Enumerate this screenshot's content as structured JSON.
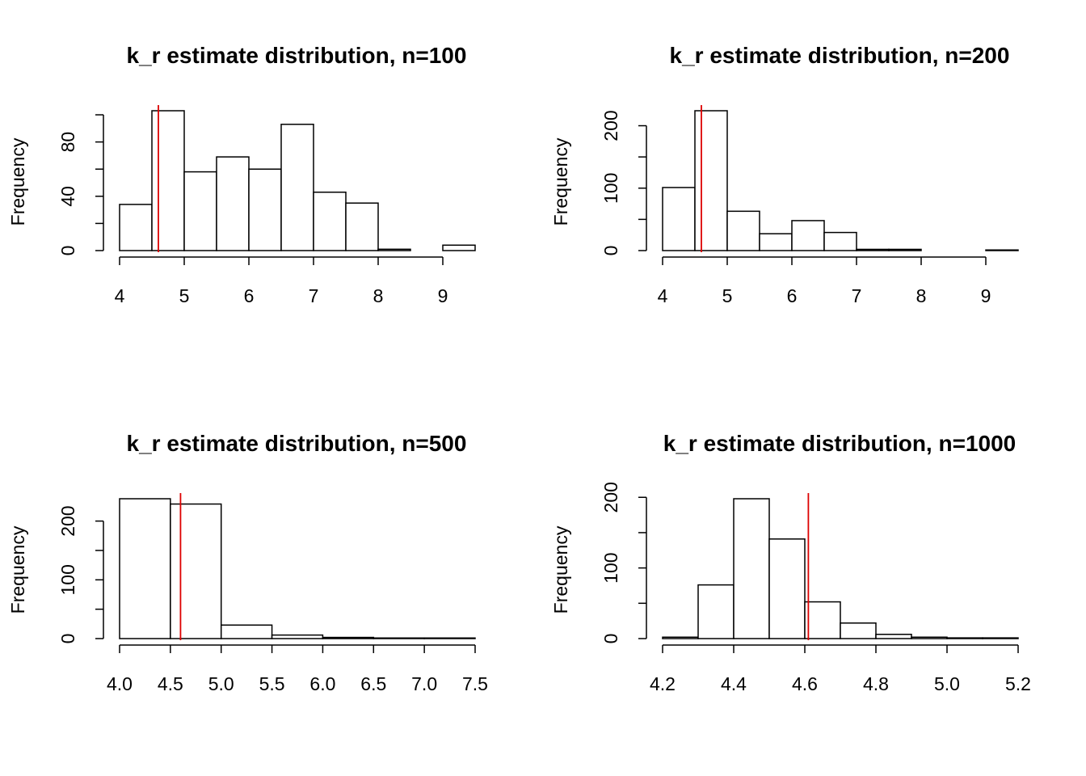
{
  "chart_data": [
    {
      "type": "bar",
      "title": "k_r estimate distribution, n=100",
      "xlabel": "",
      "ylabel": "Frequency",
      "bins": [
        [
          4.0,
          4.5
        ],
        [
          4.5,
          5.0
        ],
        [
          5.0,
          5.5
        ],
        [
          5.5,
          6.0
        ],
        [
          6.0,
          6.5
        ],
        [
          6.5,
          7.0
        ],
        [
          7.0,
          7.5
        ],
        [
          7.5,
          8.0
        ],
        [
          8.0,
          8.5
        ],
        [
          8.5,
          9.0
        ],
        [
          9.0,
          9.5
        ]
      ],
      "values": [
        34,
        103,
        58,
        69,
        60,
        93,
        43,
        35,
        1,
        0,
        4
      ],
      "xlim": [
        4,
        9.5
      ],
      "ylim": [
        0,
        103
      ],
      "xticks": [
        4,
        5,
        6,
        7,
        8,
        9
      ],
      "xtick_labels": [
        "4",
        "5",
        "6",
        "7",
        "8",
        "9"
      ],
      "yticks": [
        0,
        20,
        40,
        60,
        80,
        100
      ],
      "ytick_labels": [
        "0",
        "",
        "40",
        "",
        "80",
        ""
      ],
      "reference_line": {
        "x": 4.6,
        "color": "#dd0000"
      },
      "bar_fill": "#ffffff",
      "bar_stroke": "#000000",
      "grid": false
    },
    {
      "type": "bar",
      "title": "k_r estimate distribution, n=200",
      "xlabel": "",
      "ylabel": "Frequency",
      "bins": [
        [
          4.0,
          4.5
        ],
        [
          4.5,
          5.0
        ],
        [
          5.0,
          5.5
        ],
        [
          5.5,
          6.0
        ],
        [
          6.0,
          6.5
        ],
        [
          6.5,
          7.0
        ],
        [
          7.0,
          7.5
        ],
        [
          7.5,
          8.0
        ],
        [
          8.0,
          8.5
        ],
        [
          8.5,
          9.0
        ],
        [
          9.0,
          9.5
        ]
      ],
      "values": [
        101,
        224,
        63,
        27,
        48,
        29,
        2,
        2,
        0,
        0,
        1
      ],
      "xlim": [
        4,
        9.5
      ],
      "ylim": [
        0,
        224
      ],
      "xticks": [
        4,
        5,
        6,
        7,
        8,
        9
      ],
      "xtick_labels": [
        "4",
        "5",
        "6",
        "7",
        "8",
        "9"
      ],
      "yticks": [
        0,
        50,
        100,
        150,
        200
      ],
      "ytick_labels": [
        "0",
        "",
        "100",
        "",
        "200"
      ],
      "reference_line": {
        "x": 4.6,
        "color": "#dd0000"
      },
      "bar_fill": "#ffffff",
      "bar_stroke": "#000000",
      "grid": false
    },
    {
      "type": "bar",
      "title": "k_r estimate distribution, n=500",
      "xlabel": "",
      "ylabel": "Frequency",
      "bins": [
        [
          4.0,
          4.5
        ],
        [
          4.5,
          5.0
        ],
        [
          5.0,
          5.5
        ],
        [
          5.5,
          6.0
        ],
        [
          6.0,
          6.5
        ],
        [
          6.5,
          7.0
        ],
        [
          7.0,
          7.5
        ]
      ],
      "values": [
        238,
        229,
        23,
        6,
        2,
        1,
        1
      ],
      "xlim": [
        4,
        7.5
      ],
      "ylim": [
        0,
        238
      ],
      "xticks": [
        4.0,
        4.5,
        5.0,
        5.5,
        6.0,
        6.5,
        7.0,
        7.5
      ],
      "xtick_labels": [
        "4.0",
        "4.5",
        "5.0",
        "5.5",
        "6.0",
        "6.5",
        "7.0",
        "7.5"
      ],
      "yticks": [
        0,
        50,
        100,
        150,
        200
      ],
      "ytick_labels": [
        "0",
        "",
        "100",
        "",
        "200"
      ],
      "reference_line": {
        "x": 4.6,
        "color": "#dd0000"
      },
      "bar_fill": "#ffffff",
      "bar_stroke": "#000000",
      "grid": false
    },
    {
      "type": "bar",
      "title": "k_r estimate distribution, n=1000",
      "xlabel": "",
      "ylabel": "Frequency",
      "bins": [
        [
          4.2,
          4.3
        ],
        [
          4.3,
          4.4
        ],
        [
          4.4,
          4.5
        ],
        [
          4.5,
          4.6
        ],
        [
          4.6,
          4.7
        ],
        [
          4.7,
          4.8
        ],
        [
          4.8,
          4.9
        ],
        [
          4.9,
          5.0
        ],
        [
          5.0,
          5.1
        ],
        [
          5.1,
          5.2
        ]
      ],
      "values": [
        2,
        76,
        198,
        141,
        52,
        22,
        6,
        2,
        1,
        1
      ],
      "xlim": [
        4.2,
        5.2
      ],
      "ylim": [
        0,
        198
      ],
      "xticks": [
        4.2,
        4.4,
        4.6,
        4.8,
        5.0,
        5.2
      ],
      "xtick_labels": [
        "4.2",
        "4.4",
        "4.6",
        "4.8",
        "5.0",
        "5.2"
      ],
      "yticks": [
        0,
        50,
        100,
        150,
        200
      ],
      "ytick_labels": [
        "0",
        "",
        "100",
        "",
        "200"
      ],
      "reference_line": {
        "x": 4.61,
        "color": "#dd0000"
      },
      "bar_fill": "#ffffff",
      "bar_stroke": "#000000",
      "grid": false
    }
  ]
}
